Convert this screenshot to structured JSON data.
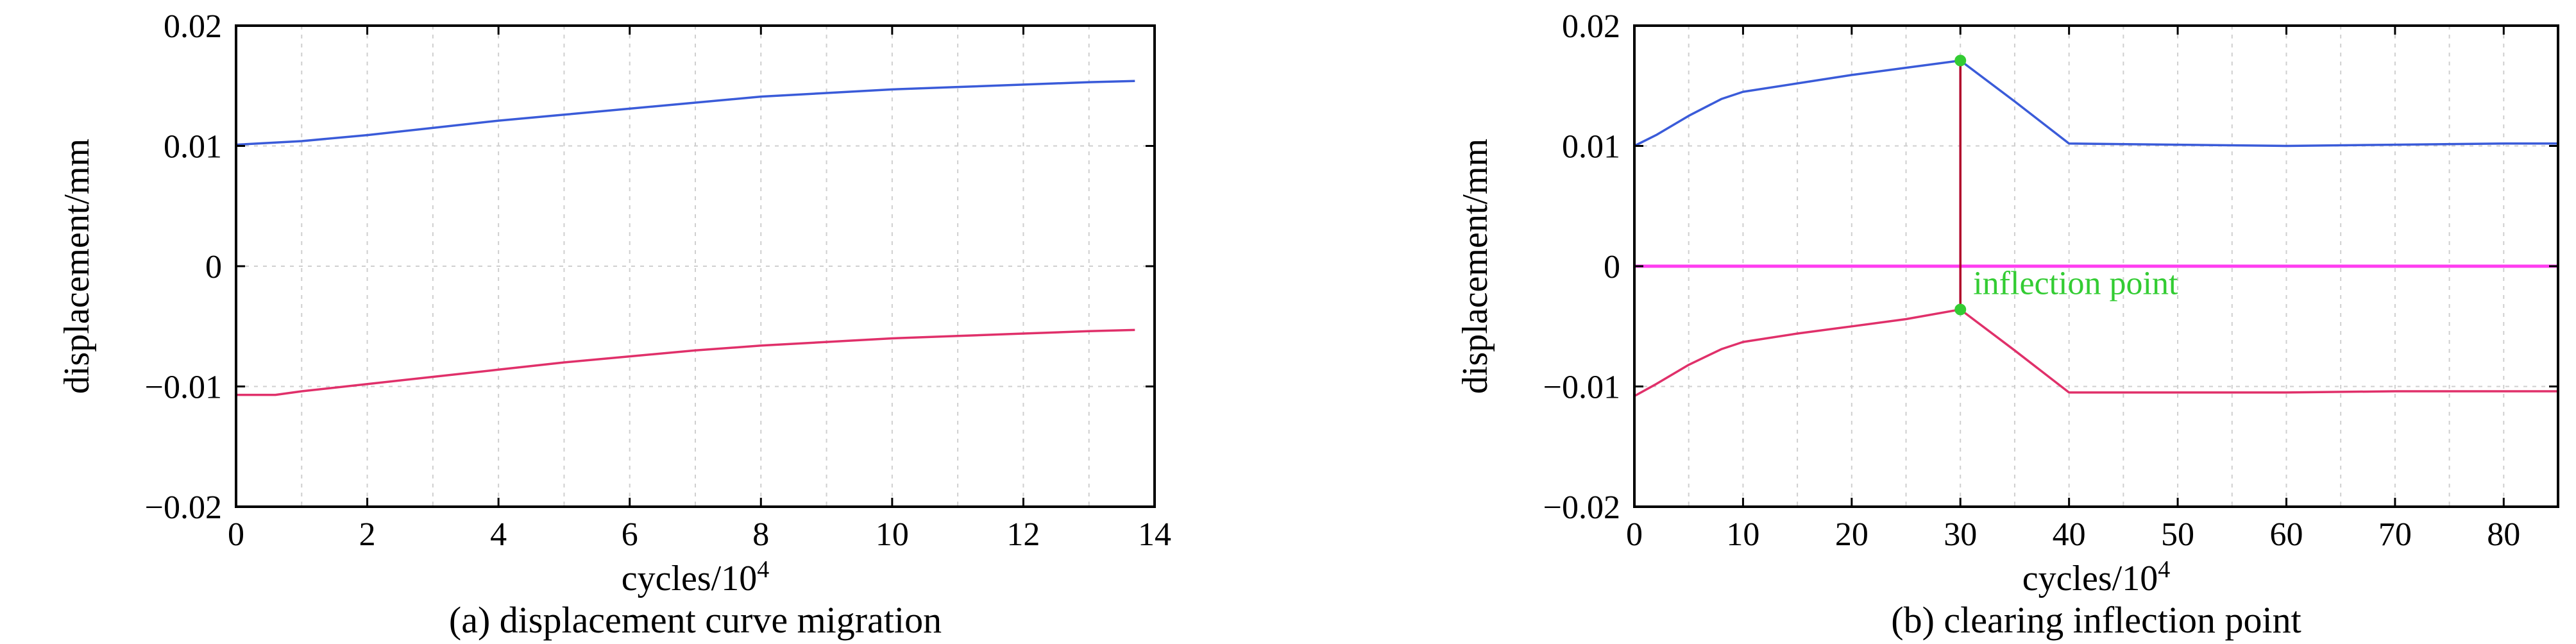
{
  "colors": {
    "upper_curve": "#3a5bd9",
    "lower_curve": "#e0306a",
    "zero_line": "#ff3df0",
    "inflection_marker": "#33cc33",
    "inflection_line": "#b0002a",
    "annotation_text": "#33cc33",
    "grid": "#cfcfcf"
  },
  "chart_data": [
    {
      "type": "line",
      "caption": "(a) displacement curve migration",
      "xlabel_base": "cycles/10",
      "xlabel_exp": "4",
      "ylabel": "displacement/mm",
      "xlim": [
        0,
        14
      ],
      "ylim": [
        -0.02,
        0.02
      ],
      "x_ticks": [
        0,
        2,
        4,
        6,
        8,
        10,
        12,
        14
      ],
      "x_tick_labels": [
        "0",
        "2",
        "4",
        "6",
        "8",
        "10",
        "12",
        "14"
      ],
      "y_ticks": [
        0.02,
        0.01,
        0,
        -0.01,
        -0.02
      ],
      "y_tick_labels": [
        "0.02",
        "0.01",
        "0",
        "−0.01",
        "−0.02"
      ],
      "grid": true,
      "series": [
        {
          "color_key": "upper_curve",
          "x": [
            0,
            1,
            2,
            3,
            4,
            5,
            6,
            7,
            8,
            9,
            10,
            11,
            12,
            13,
            13.7
          ],
          "y": [
            0.0101,
            0.0104,
            0.0109,
            0.0115,
            0.0121,
            0.0126,
            0.0131,
            0.0136,
            0.0141,
            0.0144,
            0.0147,
            0.0149,
            0.0151,
            0.0153,
            0.0154
          ]
        },
        {
          "color_key": "lower_curve",
          "x": [
            0,
            0.6,
            1,
            2,
            3,
            4,
            5,
            6,
            7,
            8,
            9,
            10,
            11,
            12,
            13,
            13.7
          ],
          "y": [
            -0.0107,
            -0.0107,
            -0.0104,
            -0.0098,
            -0.0092,
            -0.0086,
            -0.008,
            -0.0075,
            -0.007,
            -0.0066,
            -0.0063,
            -0.006,
            -0.0058,
            -0.0056,
            -0.0054,
            -0.0053
          ]
        }
      ]
    },
    {
      "type": "line",
      "caption": "(b) clearing inflection point",
      "xlabel_base": "cycles/10",
      "xlabel_exp": "4",
      "ylabel": "displacement/mm",
      "xlim": [
        0,
        85
      ],
      "ylim": [
        -0.02,
        0.02
      ],
      "x_ticks": [
        0,
        10,
        20,
        30,
        40,
        50,
        60,
        70,
        80
      ],
      "x_tick_labels": [
        "0",
        "10",
        "20",
        "30",
        "40",
        "50",
        "60",
        "70",
        "80"
      ],
      "y_ticks": [
        0.02,
        0.01,
        0,
        -0.01,
        -0.02
      ],
      "y_tick_labels": [
        "0.02",
        "0.01",
        "0",
        "−0.01",
        "−0.02"
      ],
      "grid": true,
      "series": [
        {
          "color_key": "upper_curve",
          "x": [
            0,
            2,
            5,
            8,
            10,
            15,
            20,
            25,
            30,
            35,
            40,
            50,
            60,
            70,
            80,
            85
          ],
          "y": [
            0.01,
            0.0109,
            0.0125,
            0.0139,
            0.0145,
            0.0152,
            0.0159,
            0.0165,
            0.0171,
            0.0137,
            0.0102,
            0.0101,
            0.01,
            0.0101,
            0.0102,
            0.0102
          ]
        },
        {
          "color_key": "zero_line",
          "x": [
            0,
            85
          ],
          "y": [
            0,
            0
          ]
        },
        {
          "color_key": "lower_curve",
          "x": [
            0,
            2,
            5,
            8,
            10,
            15,
            20,
            25,
            30,
            35,
            40,
            50,
            60,
            70,
            80,
            85
          ],
          "y": [
            -0.0108,
            -0.0098,
            -0.0082,
            -0.0069,
            -0.0063,
            -0.0056,
            -0.005,
            -0.0044,
            -0.0036,
            -0.007,
            -0.0105,
            -0.0105,
            -0.0105,
            -0.0104,
            -0.0104,
            -0.0104
          ]
        }
      ],
      "inflection": {
        "x": 30,
        "y_top": 0.0171,
        "y_bottom": -0.0036,
        "label": "inflection point"
      }
    }
  ]
}
